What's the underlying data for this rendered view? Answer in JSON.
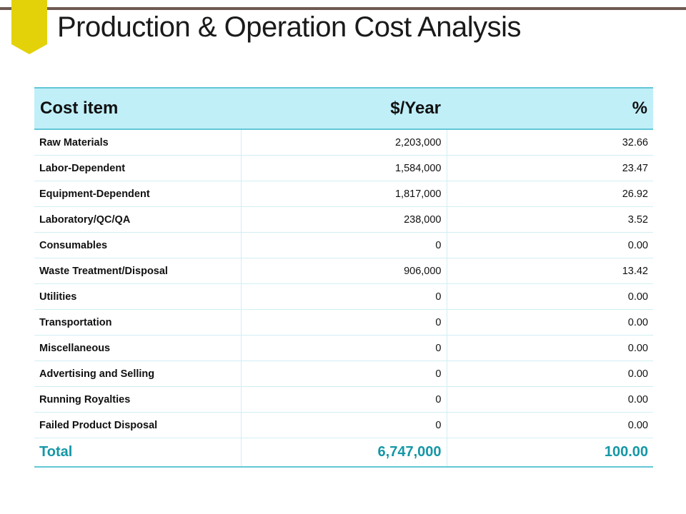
{
  "header": {
    "title": "Production & Operation Cost Analysis",
    "accent_color": "#e3d20a",
    "rule_color": "#6e5a52"
  },
  "table": {
    "columns": [
      "Cost item",
      "$/Year",
      "%"
    ],
    "rows": [
      {
        "item": "Raw Materials",
        "per_year": "2,203,000",
        "percent": "32.66"
      },
      {
        "item": "Labor-Dependent",
        "per_year": "1,584,000",
        "percent": "23.47"
      },
      {
        "item": "Equipment-Dependent",
        "per_year": "1,817,000",
        "percent": "26.92"
      },
      {
        "item": "Laboratory/QC/QA",
        "per_year": "238,000",
        "percent": "3.52"
      },
      {
        "item": "Consumables",
        "per_year": "0",
        "percent": "0.00"
      },
      {
        "item": "Waste Treatment/Disposal",
        "per_year": "906,000",
        "percent": "13.42"
      },
      {
        "item": "Utilities",
        "per_year": "0",
        "percent": "0.00"
      },
      {
        "item": "Transportation",
        "per_year": "0",
        "percent": "0.00"
      },
      {
        "item": "Miscellaneous",
        "per_year": "0",
        "percent": "0.00"
      },
      {
        "item": "Advertising and Selling",
        "per_year": "0",
        "percent": "0.00"
      },
      {
        "item": "Running Royalties",
        "per_year": "0",
        "percent": "0.00"
      },
      {
        "item": "Failed Product Disposal",
        "per_year": "0",
        "percent": "0.00"
      }
    ],
    "total": {
      "label": "Total",
      "per_year": "6,747,000",
      "percent": "100.00"
    },
    "header_bg": "#c0eff8",
    "accent_color": "#1597a6"
  }
}
